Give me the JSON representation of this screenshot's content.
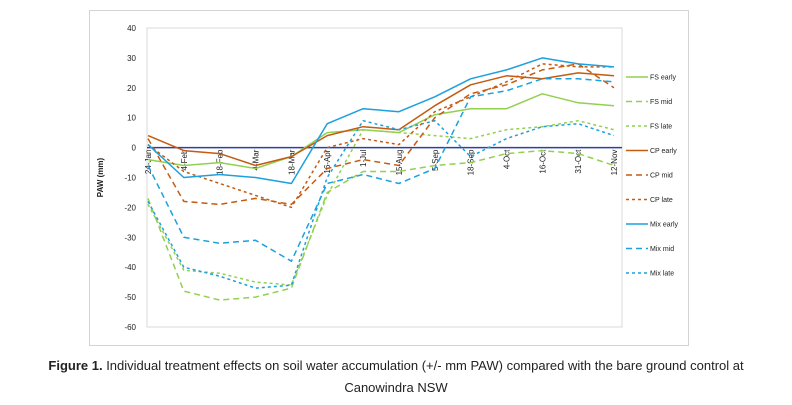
{
  "chart_data": {
    "type": "line",
    "title": "",
    "xlabel": "",
    "ylabel": "PAW (mm)",
    "ylim": [
      -60,
      40
    ],
    "yticks": [
      40,
      30,
      20,
      10,
      0,
      -10,
      -20,
      -30,
      -40,
      -50,
      -60
    ],
    "categories": [
      "24-Jan",
      "4-Feb",
      "18-Feb",
      "4-Mar",
      "18-Mar",
      "16-Apr",
      "1-Jul",
      "15-Aug",
      "5-Sep",
      "18-Sep",
      "4-Oct",
      "16-Oct",
      "31-Oct",
      "12-Nov"
    ],
    "zero_line_color": "#2e3fa0",
    "legend_position": "right",
    "series": [
      {
        "name": "FS early",
        "color": "#92d050",
        "dash": "solid",
        "values": [
          -4,
          -6,
          -5,
          -7,
          -3,
          5,
          6,
          5,
          11,
          13,
          13,
          18,
          15,
          14
        ]
      },
      {
        "name": "FS mid",
        "color": "#92d050",
        "dash": "long",
        "values": [
          -17,
          -48,
          -51,
          -50,
          -47,
          -15,
          -8,
          -8,
          -6,
          -5,
          -2,
          -1,
          -2,
          -6
        ]
      },
      {
        "name": "FS late",
        "color": "#92d050",
        "dash": "short",
        "values": [
          -19,
          -41,
          -42,
          -45,
          -46,
          -16,
          6,
          5,
          4,
          3,
          6,
          7,
          9,
          6
        ]
      },
      {
        "name": "CP early",
        "color": "#c55a11",
        "dash": "solid",
        "values": [
          4,
          -1,
          -2,
          -6,
          -3,
          4,
          7,
          6,
          14,
          21,
          24,
          23,
          25,
          24
        ]
      },
      {
        "name": "CP mid",
        "color": "#c55a11",
        "dash": "long",
        "values": [
          3,
          -18,
          -19,
          -17,
          -19,
          -7,
          -4,
          -6,
          10,
          18,
          21,
          26,
          28,
          20
        ]
      },
      {
        "name": "CP late",
        "color": "#c55a11",
        "dash": "short",
        "values": [
          1,
          -8,
          -12,
          -16,
          -20,
          0,
          3,
          1,
          12,
          17,
          22,
          28,
          27,
          27
        ]
      },
      {
        "name": "Mix early",
        "color": "#1ca0de",
        "dash": "solid",
        "values": [
          1,
          -10,
          -9,
          -10,
          -12,
          8,
          13,
          12,
          17,
          23,
          26,
          30,
          28,
          27
        ]
      },
      {
        "name": "Mix mid",
        "color": "#1ca0de",
        "dash": "long",
        "values": [
          -6,
          -30,
          -32,
          -31,
          -38,
          -12,
          -9,
          -12,
          -7,
          17,
          19,
          23,
          23,
          22
        ]
      },
      {
        "name": "Mix late",
        "color": "#1ca0de",
        "dash": "short",
        "values": [
          -18,
          -40,
          -43,
          -47,
          -46,
          -10,
          9,
          6,
          9,
          -3,
          3,
          7,
          8,
          4
        ]
      }
    ]
  },
  "caption": {
    "label": "Figure 1.",
    "text": " Individual treatment effects on soil water accumulation (+/- mm PAW) compared with the bare ground control at Canowindra NSW"
  }
}
